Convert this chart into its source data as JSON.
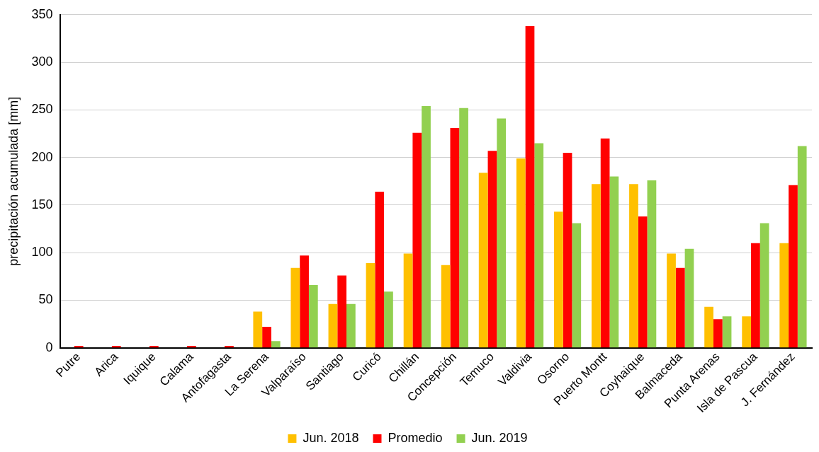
{
  "chart_data": {
    "type": "bar",
    "ylabel": "precipitación acumulada [mm]",
    "categories": [
      "Putre",
      "Arica",
      "Iquique",
      "Calama",
      "Antofagasta",
      "La Serena",
      "Valparaíso",
      "Santiago",
      "Curicó",
      "Chillán",
      "Concepción",
      "Temuco",
      "Valdivia",
      "Osorno",
      "Puerto Montt",
      "Coyhaique",
      "Balmaceda",
      "Punta Arenas",
      "Isla de Pascua",
      "J. Fernández"
    ],
    "series": [
      {
        "name": "Jun. 2018",
        "color": "#ffc000",
        "values": [
          0,
          0,
          0,
          0,
          0,
          38,
          84,
          46,
          89,
          99,
          87,
          184,
          199,
          143,
          172,
          172,
          99,
          43,
          33,
          110
        ]
      },
      {
        "name": "Promedio",
        "color": "#ff0000",
        "values": [
          2,
          2,
          2,
          2,
          2,
          22,
          97,
          76,
          164,
          226,
          231,
          207,
          338,
          205,
          220,
          138,
          84,
          30,
          110,
          171
        ]
      },
      {
        "name": "Jun. 2019",
        "color": "#92d050",
        "values": [
          0,
          0,
          0,
          0,
          0,
          7,
          66,
          46,
          59,
          254,
          252,
          241,
          215,
          131,
          180,
          176,
          104,
          33,
          131,
          212
        ]
      }
    ],
    "ylim": [
      0,
      350
    ],
    "yticks": [
      0,
      50,
      100,
      150,
      200,
      250,
      300,
      350
    ],
    "grid": "y",
    "legend": "bottom"
  }
}
